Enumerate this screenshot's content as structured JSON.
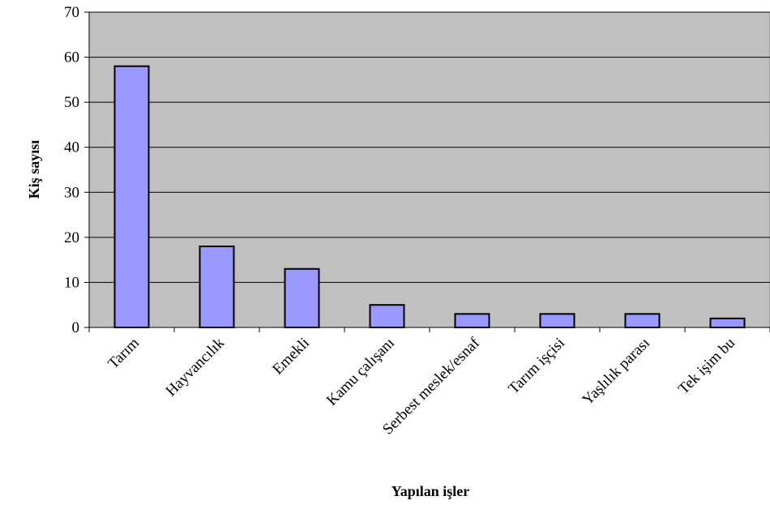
{
  "chart_data": {
    "type": "bar",
    "title": "",
    "xlabel": "Yapılan işler",
    "ylabel": "Kiş sayısı",
    "categories": [
      "Tarım",
      "Hayvancılık",
      "Emekli",
      "Kamu çalışanı",
      "Serbest meslek/esnaf",
      "Tarım işçisi",
      "Yaşlılık parası",
      "Tek işim bu"
    ],
    "values": [
      58,
      18,
      13,
      5,
      3,
      3,
      3,
      2
    ],
    "ylim": [
      0,
      70
    ],
    "yticks": [
      0,
      10,
      20,
      30,
      40,
      50,
      60,
      70
    ],
    "grid": true,
    "legend": "none",
    "colors": {
      "plot_background": "#c0c0c0",
      "bar_fill": "#9999ff",
      "bar_stroke": "#000000",
      "gridline": "#000000"
    }
  }
}
